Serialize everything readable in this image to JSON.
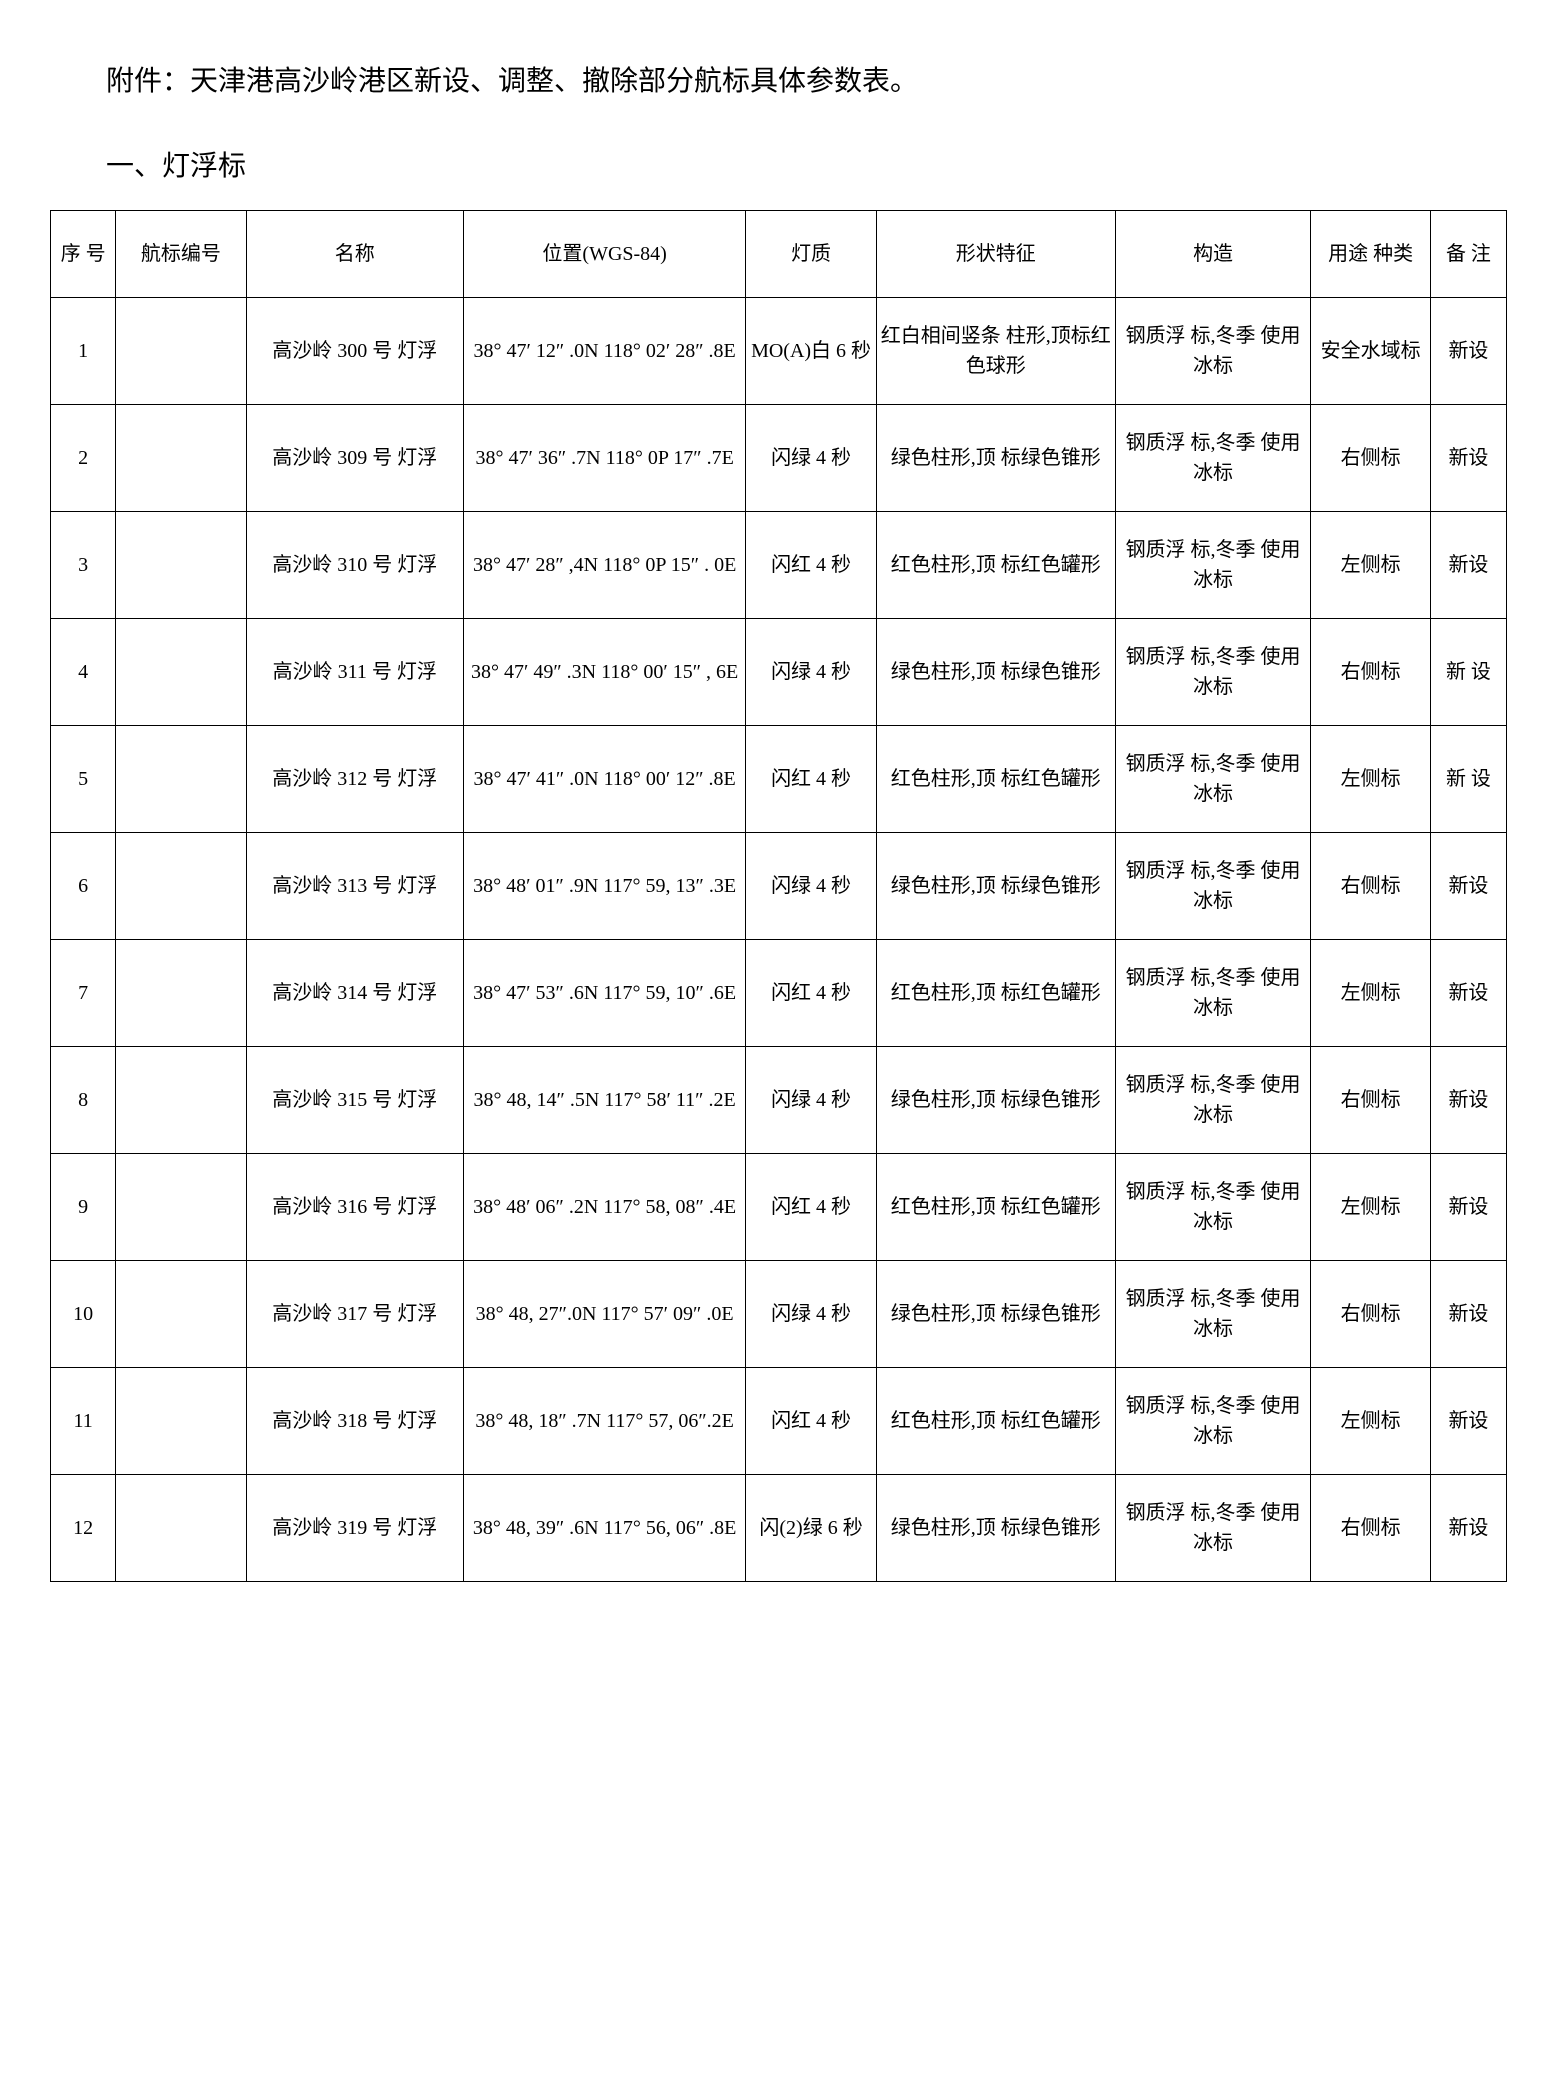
{
  "attachment_title": "附件：天津港高沙岭港区新设、调整、撤除部分航标具体参数表。",
  "section_title": "一、灯浮标",
  "table": {
    "columns": [
      "序  号",
      "航标编号",
      "名称",
      "位置(WGS-84)",
      "灯质",
      "形状特征",
      "构造",
      "用途 种类",
      "备 注"
    ],
    "rows": [
      {
        "seq": "1",
        "code": "",
        "name": "高沙岭 300 号 灯浮",
        "pos": "38° 47′ 12″ .0N 118° 02′ 28″ .8E",
        "light": "MO(A)白 6 秒",
        "shape": "红白相间竖条 柱形,顶标红 色球形",
        "struct": "钢质浮 标,冬季 使用冰标",
        "use": "安全水域标",
        "note": "新设"
      },
      {
        "seq": "2",
        "code": "",
        "name": "高沙岭 309 号 灯浮",
        "pos": "38° 47′ 36″ .7N 118° 0P 17″ .7E",
        "light": "闪绿 4 秒",
        "shape": "绿色柱形,顶 标绿色锥形",
        "struct": "钢质浮 标,冬季 使用冰标",
        "use": "右侧标",
        "note": "新设"
      },
      {
        "seq": "3",
        "code": "",
        "name": "高沙岭 310 号 灯浮",
        "pos": "38° 47′ 28″ ,4N 118° 0P 15″ . 0E",
        "light": "闪红 4 秒",
        "shape": "红色柱形,顶 标红色罐形",
        "struct": "钢质浮 标,冬季 使用冰标",
        "use": "左侧标",
        "note": "新设"
      },
      {
        "seq": "4",
        "code": "",
        "name": "高沙岭 311 号 灯浮",
        "pos": "38° 47′ 49″ .3N 118° 00′ 15″ , 6E",
        "light": "闪绿 4 秒",
        "shape": "绿色柱形,顶 标绿色锥形",
        "struct": "钢质浮 标,冬季 使用冰标",
        "use": "右侧标",
        "note": "新 设"
      },
      {
        "seq": "5",
        "code": "",
        "name": "高沙岭 312 号 灯浮",
        "pos": "38° 47′ 41″ .0N 118° 00′ 12″ .8E",
        "light": "闪红 4 秒",
        "shape": "红色柱形,顶 标红色罐形",
        "struct": "钢质浮 标,冬季 使用冰标",
        "use": "左侧标",
        "note": "新 设"
      },
      {
        "seq": "6",
        "code": "",
        "name": "高沙岭 313 号 灯浮",
        "pos": "38° 48′ 01″ .9N 117° 59, 13″ .3E",
        "light": "闪绿 4 秒",
        "shape": "绿色柱形,顶 标绿色锥形",
        "struct": "钢质浮 标,冬季 使用冰标",
        "use": "右侧标",
        "note": "新设"
      },
      {
        "seq": "7",
        "code": "",
        "name": "高沙岭 314 号 灯浮",
        "pos": "38° 47′ 53″ .6N 117° 59, 10″ .6E",
        "light": "闪红 4 秒",
        "shape": "红色柱形,顶 标红色罐形",
        "struct": "钢质浮 标,冬季 使用冰标",
        "use": "左侧标",
        "note": "新设"
      },
      {
        "seq": "8",
        "code": "",
        "name": "高沙岭 315 号 灯浮",
        "pos": "38° 48, 14″ .5N 117° 58′ 11″ .2E",
        "light": "闪绿 4 秒",
        "shape": "绿色柱形,顶 标绿色锥形",
        "struct": "钢质浮 标,冬季 使用冰标",
        "use": "右侧标",
        "note": "新设"
      },
      {
        "seq": "9",
        "code": "",
        "name": "高沙岭 316 号 灯浮",
        "pos": "38° 48′ 06″ .2N 117° 58, 08″ .4E",
        "light": "闪红 4 秒",
        "shape": "红色柱形,顶 标红色罐形",
        "struct": "钢质浮 标,冬季 使用冰标",
        "use": "左侧标",
        "note": "新设"
      },
      {
        "seq": "10",
        "code": "",
        "name": "高沙岭 317 号 灯浮",
        "pos": "38° 48, 27″.0N 117° 57′ 09″ .0E",
        "light": "闪绿 4 秒",
        "shape": "绿色柱形,顶 标绿色锥形",
        "struct": "钢质浮 标,冬季 使用冰标",
        "use": "右侧标",
        "note": "新设"
      },
      {
        "seq": "11",
        "code": "",
        "name": "高沙岭 318 号 灯浮",
        "pos": "38° 48, 18″ .7N 117° 57, 06″.2E",
        "light": "闪红 4 秒",
        "shape": "红色柱形,顶 标红色罐形",
        "struct": "钢质浮 标,冬季 使用冰标",
        "use": "左侧标",
        "note": "新设"
      },
      {
        "seq": "12",
        "code": "",
        "name": "高沙岭 319 号 灯浮",
        "pos": "38° 48, 39″ .6N 117° 56, 06″ .8E",
        "light": "闪(2)绿 6 秒",
        "shape": "绿色柱形,顶 标绿色锥形",
        "struct": "钢质浮 标,冬季 使用冰标",
        "use": "右侧标",
        "note": "新设"
      }
    ]
  }
}
